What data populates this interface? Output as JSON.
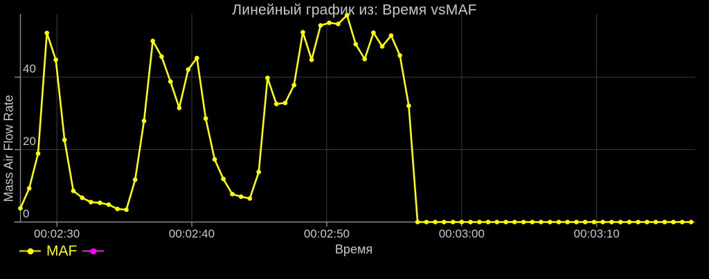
{
  "chart": {
    "title": "Линейный график из: Время vsMAF",
    "xlabel": "Время",
    "ylabel": "Mass Air Flow Rate"
  },
  "legend": {
    "items": [
      {
        "label": "MAF",
        "line_color": "#a8a800",
        "dot_color": "#ffff00",
        "label_color": "#ffff00"
      },
      {
        "label": "",
        "line_color": "#8e2a8e",
        "dot_color": "#ff00ff",
        "label_color": "#ff00ff"
      }
    ]
  },
  "colors": {
    "background": "#000000",
    "title": "#c8c8c8",
    "tick_label": "#c8c8c8",
    "axis": "#8c8c8c",
    "grid": "#3d3d3d",
    "series_yellow": "#ffff00",
    "series_magenta": "#ff00ff"
  },
  "chart_data": {
    "type": "line",
    "title": "Линейный график из: Время vsМAF",
    "xlabel": "Время",
    "ylabel": "Mass Air Flow Rate",
    "x_unit": "seconds since 00:00:00",
    "grid": true,
    "background": "#000000",
    "legend_position": "bottom-left",
    "xlim": [
      147.3,
      197.3
    ],
    "ylim": [
      0,
      57.5
    ],
    "x_ticks": [
      {
        "t": 150,
        "label": "00:02:30"
      },
      {
        "t": 160,
        "label": "00:02:40"
      },
      {
        "t": 170,
        "label": "00:02:50"
      },
      {
        "t": 180,
        "label": "00:03:00"
      },
      {
        "t": 190,
        "label": "00:03:10"
      }
    ],
    "y_ticks": [
      {
        "v": 0,
        "label": "0"
      },
      {
        "v": 20,
        "label": "20"
      },
      {
        "v": 40,
        "label": "40"
      }
    ],
    "series": [
      {
        "name": "MAF",
        "color": "#ffff00",
        "marker": "dot",
        "points": [
          [
            147.3,
            3.8
          ],
          [
            147.95,
            9.3
          ],
          [
            148.61,
            18.9
          ],
          [
            149.26,
            52.2
          ],
          [
            149.92,
            44.8
          ],
          [
            150.57,
            22.7
          ],
          [
            151.22,
            8.6
          ],
          [
            151.88,
            6.7
          ],
          [
            152.53,
            5.5
          ],
          [
            153.19,
            5.3
          ],
          [
            153.84,
            4.8
          ],
          [
            154.49,
            3.6
          ],
          [
            155.15,
            3.4
          ],
          [
            155.8,
            11.7
          ],
          [
            156.46,
            27.9
          ],
          [
            157.11,
            50.0
          ],
          [
            157.76,
            45.7
          ],
          [
            158.42,
            38.8
          ],
          [
            159.07,
            31.5
          ],
          [
            159.73,
            42.1
          ],
          [
            160.38,
            45.3
          ],
          [
            161.03,
            28.6
          ],
          [
            161.69,
            17.3
          ],
          [
            162.34,
            11.9
          ],
          [
            163.0,
            7.7
          ],
          [
            163.65,
            7.0
          ],
          [
            164.3,
            6.5
          ],
          [
            164.96,
            13.8
          ],
          [
            165.61,
            39.8
          ],
          [
            166.27,
            32.6
          ],
          [
            166.92,
            32.9
          ],
          [
            167.57,
            37.8
          ],
          [
            168.23,
            52.4
          ],
          [
            168.88,
            44.8
          ],
          [
            169.54,
            54.3
          ],
          [
            170.19,
            55.0
          ],
          [
            170.84,
            54.7
          ],
          [
            171.5,
            57.1
          ],
          [
            172.15,
            49.1
          ],
          [
            172.81,
            45.0
          ],
          [
            173.46,
            52.3
          ],
          [
            174.11,
            48.5
          ],
          [
            174.77,
            51.5
          ],
          [
            175.42,
            46.0
          ],
          [
            176.08,
            32.1
          ],
          [
            176.73,
            0
          ],
          [
            177.38,
            0
          ],
          [
            178.04,
            0
          ],
          [
            178.69,
            0
          ],
          [
            179.35,
            0
          ],
          [
            180.0,
            0
          ],
          [
            180.65,
            0
          ],
          [
            181.31,
            0
          ],
          [
            181.96,
            0
          ],
          [
            182.61,
            0
          ],
          [
            183.27,
            0
          ],
          [
            183.92,
            0
          ],
          [
            184.58,
            0
          ],
          [
            185.23,
            0
          ],
          [
            185.88,
            0
          ],
          [
            186.54,
            0
          ],
          [
            187.19,
            0
          ],
          [
            187.84,
            0
          ],
          [
            188.5,
            0
          ],
          [
            189.15,
            0
          ],
          [
            189.81,
            0
          ],
          [
            190.46,
            0
          ],
          [
            191.11,
            0
          ],
          [
            191.77,
            0
          ],
          [
            192.42,
            0
          ],
          [
            193.07,
            0
          ],
          [
            193.73,
            0
          ],
          [
            194.38,
            0
          ],
          [
            195.04,
            0
          ],
          [
            195.69,
            0
          ],
          [
            196.34,
            0
          ],
          [
            197.0,
            0
          ]
        ]
      },
      {
        "name": "",
        "color": "#ff00ff",
        "marker": "dot",
        "points": []
      }
    ]
  }
}
